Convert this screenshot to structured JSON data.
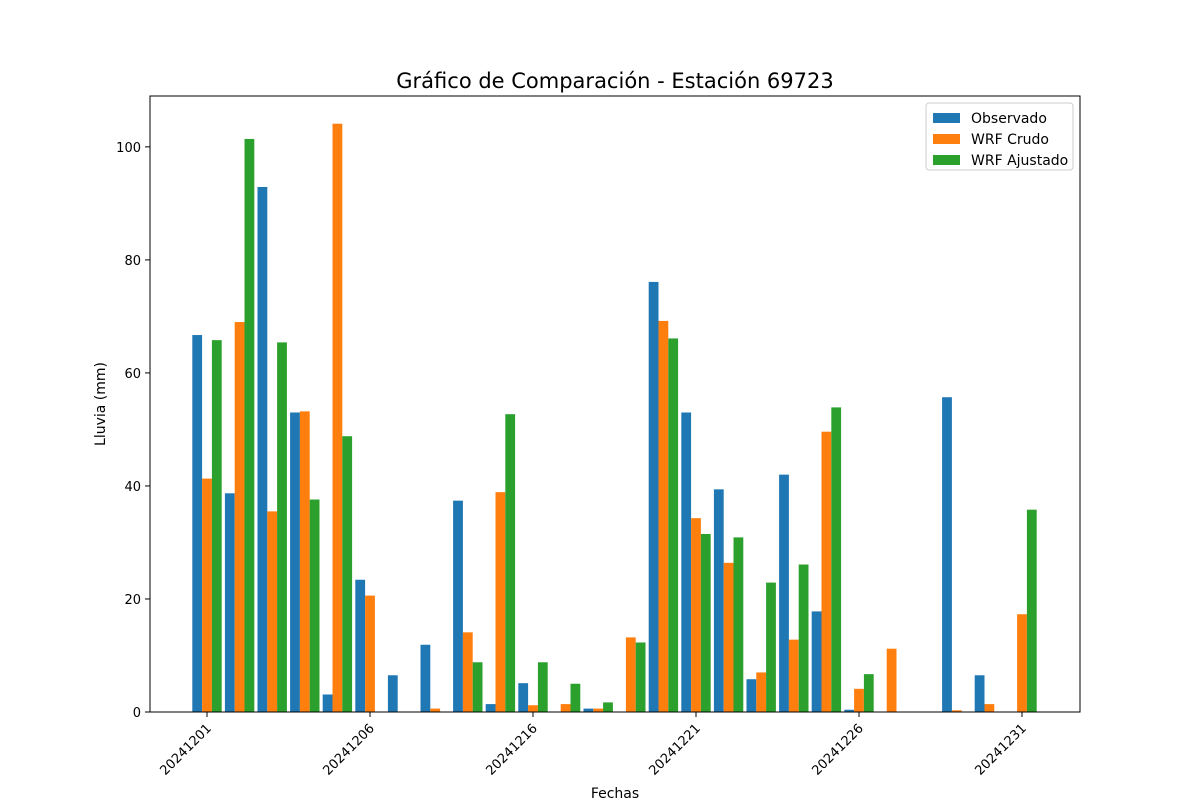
{
  "chart_data": {
    "type": "bar",
    "title": "Gráfico de Comparación - Estación 69723",
    "xlabel": "Fechas",
    "ylabel": "Lluvia (mm)",
    "ylim": [
      0,
      109
    ],
    "yticks": [
      0,
      20,
      40,
      60,
      80,
      100
    ],
    "xtick_labels": [
      "20241201",
      "20241206",
      "20241216",
      "20241221",
      "20241226",
      "20241231"
    ],
    "xtick_slots": [
      0,
      5,
      10,
      15,
      20,
      25
    ],
    "slot_count": 27,
    "grid": false,
    "legend_position": "top-right",
    "series": [
      {
        "name": "Observado",
        "color": "#1f77b4",
        "values": [
          66.7,
          38.7,
          92.9,
          53.0,
          3.1,
          23.4,
          6.5,
          11.9,
          37.4,
          1.4,
          5.1,
          0.0,
          0.6,
          0.0,
          76.1,
          53.0,
          39.4,
          5.8,
          42.0,
          17.8,
          0.4,
          0.0,
          0.0,
          55.7,
          6.5,
          0.0,
          0.0
        ]
      },
      {
        "name": "WRF Crudo",
        "color": "#ff7f0e",
        "values": [
          41.3,
          69.0,
          35.5,
          53.2,
          104.1,
          20.6,
          0.0,
          0.6,
          14.1,
          38.9,
          1.2,
          1.4,
          0.6,
          13.2,
          69.2,
          34.3,
          26.4,
          7.0,
          12.8,
          49.6,
          4.1,
          11.2,
          0.0,
          0.3,
          1.4,
          17.3,
          0.0
        ]
      },
      {
        "name": "WRF Ajustado",
        "color": "#2ca02c",
        "values": [
          65.8,
          101.4,
          65.4,
          37.6,
          48.8,
          0.0,
          0.0,
          0.0,
          8.8,
          52.7,
          8.8,
          5.0,
          1.7,
          12.3,
          66.1,
          31.5,
          30.9,
          22.9,
          26.1,
          53.9,
          6.7,
          0.0,
          0.0,
          0.0,
          0.0,
          35.8,
          0.0
        ]
      }
    ]
  }
}
